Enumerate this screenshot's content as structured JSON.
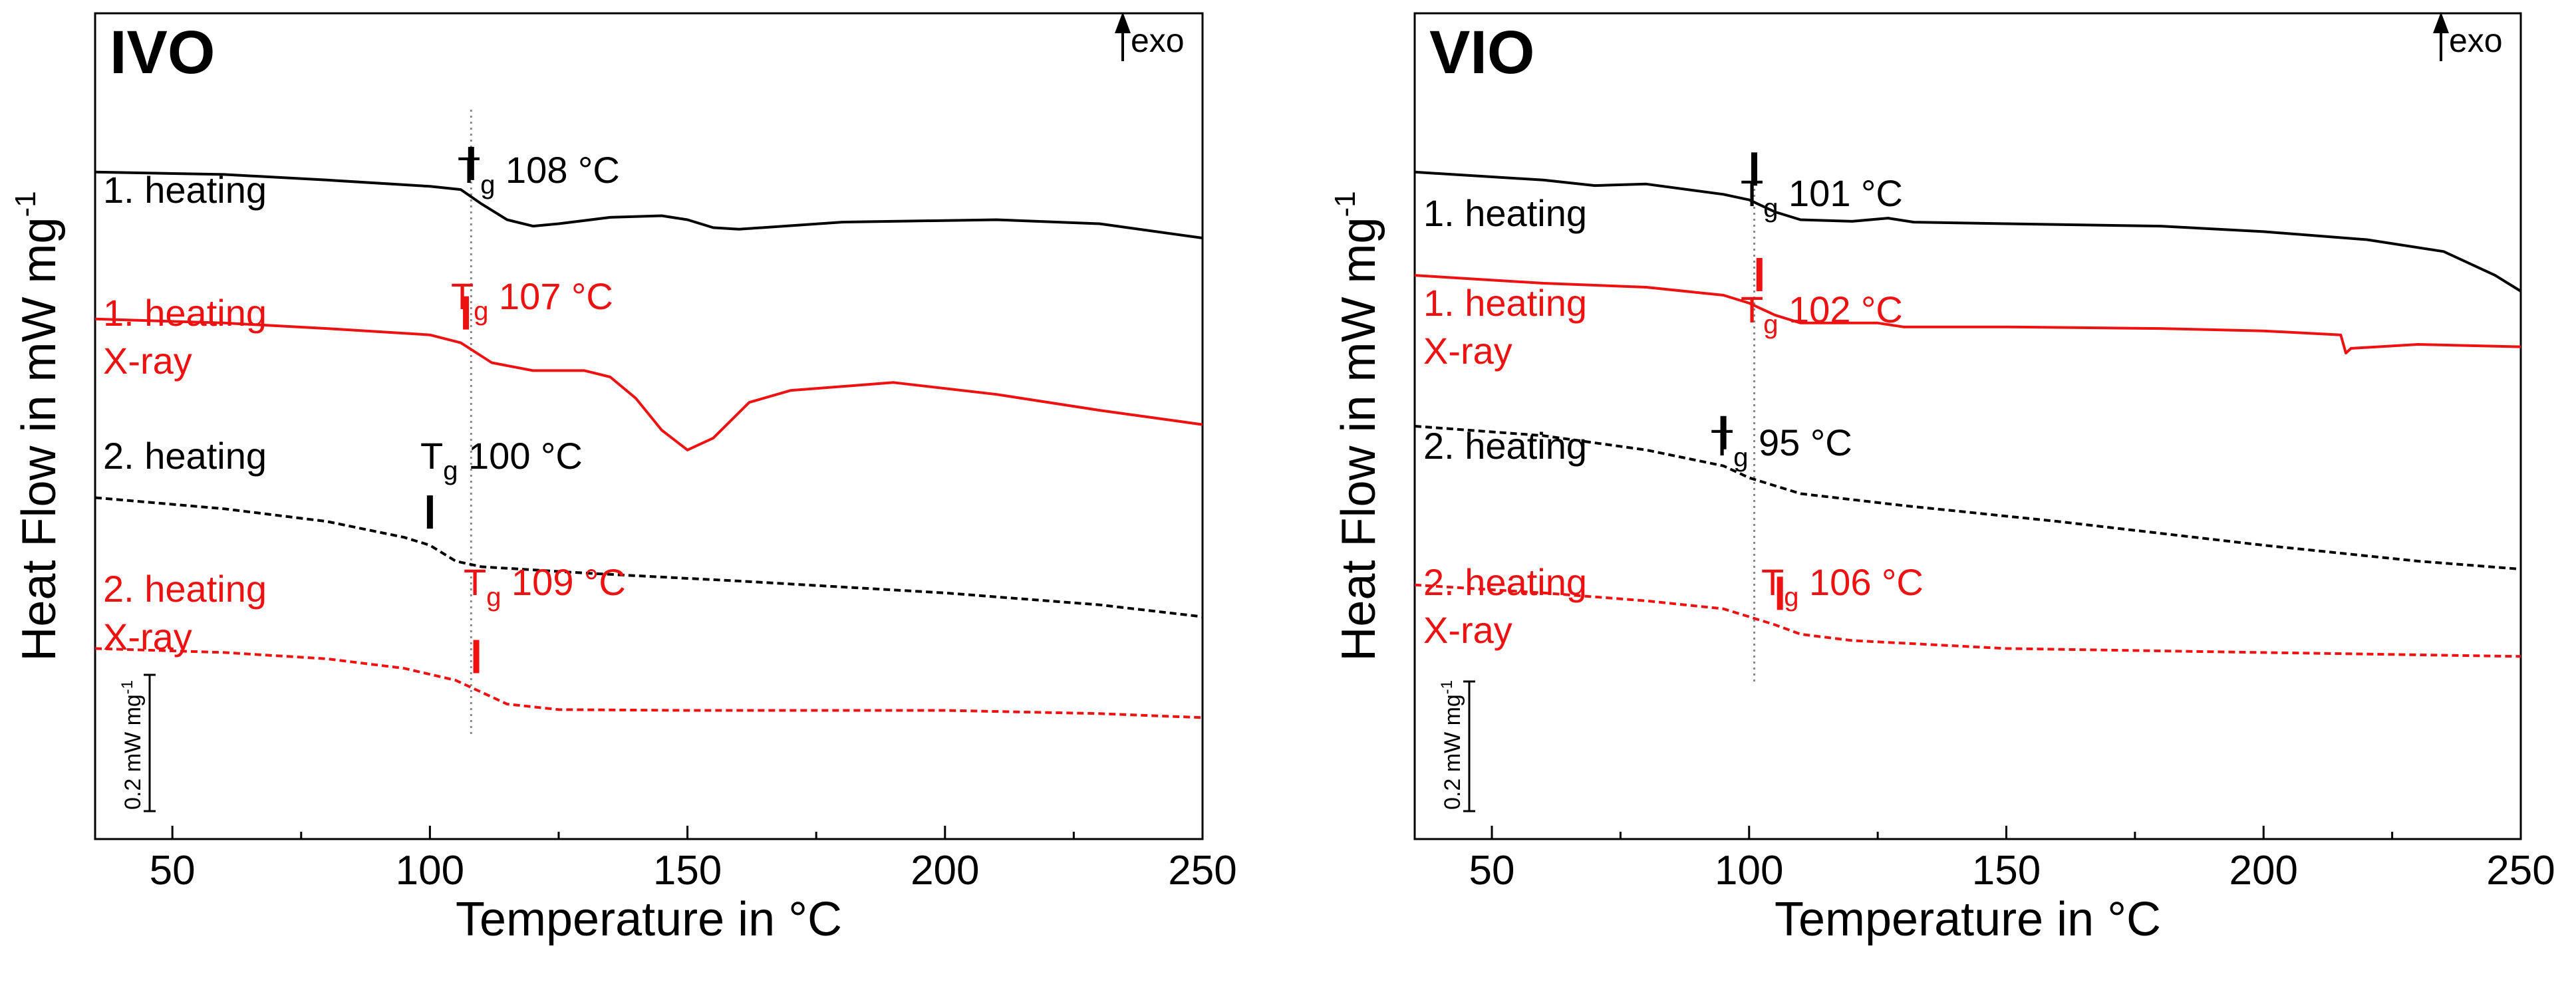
{
  "exo_label": "exo",
  "tg_prefix": "T",
  "tg_sub": "g",
  "scale_bar": {
    "label": "0.2 mW mg",
    "superscript": "-1",
    "value_mW_per_mg": 0.2
  },
  "colors": {
    "black": "#000000",
    "red": "#ee1111",
    "guide": "#888888"
  },
  "chart_data": [
    {
      "type": "line",
      "title": "IVO",
      "xlabel": "Temperature in °C",
      "ylabel": "Heat Flow in mW mg",
      "ylabel_sup": "-1",
      "xlim": [
        35,
        250
      ],
      "xticks": [
        50,
        100,
        150,
        200,
        250
      ],
      "y_units": "relative offset (mW/mg, stacked)",
      "reference_tg": 108,
      "series": [
        {
          "name": "1. heating",
          "label_lines": [
            "1. heating"
          ],
          "color": "black",
          "dash": false,
          "tg": 108,
          "tg_label": "108 °C",
          "x": [
            35,
            60,
            80,
            100,
            106,
            110,
            115,
            120,
            125,
            135,
            145,
            150,
            155,
            160,
            180,
            210,
            230,
            250
          ],
          "y": [
            0.0,
            -0.003,
            -0.01,
            -0.018,
            -0.022,
            -0.04,
            -0.06,
            -0.068,
            -0.065,
            -0.057,
            -0.055,
            -0.06,
            -0.07,
            -0.072,
            -0.063,
            -0.06,
            -0.065,
            -0.083
          ]
        },
        {
          "name": "1. heating X-ray",
          "label_lines": [
            "1. heating",
            "X-ray"
          ],
          "color": "red",
          "dash": false,
          "tg": 107,
          "tg_label": "107 °C",
          "x": [
            35,
            60,
            80,
            100,
            106,
            112,
            120,
            130,
            135,
            140,
            145,
            150,
            155,
            162,
            170,
            190,
            210,
            230,
            250
          ],
          "y": [
            -0.185,
            -0.19,
            -0.197,
            -0.205,
            -0.215,
            -0.24,
            -0.25,
            -0.25,
            -0.258,
            -0.285,
            -0.325,
            -0.35,
            -0.335,
            -0.29,
            -0.275,
            -0.265,
            -0.28,
            -0.3,
            -0.318
          ]
        },
        {
          "name": "2. heating",
          "label_lines": [
            "2. heating"
          ],
          "color": "black",
          "dash": true,
          "tg": 100,
          "tg_label": "100 °C",
          "x": [
            35,
            60,
            80,
            95,
            100,
            105,
            110,
            130,
            160,
            200,
            230,
            250
          ],
          "y": [
            -0.41,
            -0.424,
            -0.44,
            -0.46,
            -0.47,
            -0.49,
            -0.497,
            -0.505,
            -0.515,
            -0.53,
            -0.545,
            -0.56
          ]
        },
        {
          "name": "2. heating X-ray",
          "label_lines": [
            "2. heating",
            "X-ray"
          ],
          "color": "red",
          "dash": true,
          "tg": 109,
          "tg_label": "109 °C",
          "x": [
            35,
            60,
            80,
            95,
            105,
            110,
            115,
            125,
            150,
            200,
            230,
            250
          ],
          "y": [
            -0.6,
            -0.605,
            -0.613,
            -0.625,
            -0.64,
            -0.655,
            -0.67,
            -0.677,
            -0.678,
            -0.678,
            -0.682,
            -0.687
          ]
        }
      ],
      "ylim": [
        -0.84,
        0.2
      ]
    },
    {
      "type": "line",
      "title": "VIO",
      "xlabel": "Temperature in °C",
      "ylabel": "Heat Flow in mW mg",
      "ylabel_sup": "-1",
      "xlim": [
        35,
        250
      ],
      "xticks": [
        50,
        100,
        150,
        200,
        250
      ],
      "y_units": "relative offset (mW/mg, stacked)",
      "reference_tg": 101,
      "series": [
        {
          "name": "1. heating",
          "label_lines": [
            "1. heating"
          ],
          "color": "black",
          "dash": false,
          "tg": 101,
          "tg_label": "101 °C",
          "x": [
            35,
            60,
            70,
            80,
            95,
            100,
            105,
            110,
            120,
            127,
            132,
            150,
            180,
            200,
            220,
            235,
            245,
            250
          ],
          "y": [
            0.0,
            -0.01,
            -0.017,
            -0.015,
            -0.028,
            -0.035,
            -0.05,
            -0.06,
            -0.062,
            -0.058,
            -0.063,
            -0.065,
            -0.068,
            -0.075,
            -0.085,
            -0.1,
            -0.13,
            -0.15
          ]
        },
        {
          "name": "1. heating X-ray",
          "label_lines": [
            "1. heating",
            "X-ray"
          ],
          "color": "red",
          "dash": false,
          "tg": 102,
          "tg_label": "102 °C",
          "x": [
            35,
            60,
            80,
            95,
            100,
            105,
            110,
            125,
            130,
            150,
            180,
            200,
            215,
            216,
            217,
            230,
            250
          ],
          "y": [
            -0.13,
            -0.14,
            -0.145,
            -0.155,
            -0.165,
            -0.18,
            -0.19,
            -0.19,
            -0.195,
            -0.195,
            -0.197,
            -0.2,
            -0.205,
            -0.228,
            -0.222,
            -0.217,
            -0.22
          ]
        },
        {
          "name": "2. heating",
          "label_lines": [
            "2. heating"
          ],
          "color": "black",
          "dash": true,
          "tg": 95,
          "tg_label": "95 °C",
          "x": [
            35,
            60,
            80,
            95,
            100,
            110,
            130,
            160,
            200,
            230,
            250
          ],
          "y": [
            -0.32,
            -0.332,
            -0.35,
            -0.37,
            -0.385,
            -0.405,
            -0.42,
            -0.44,
            -0.47,
            -0.49,
            -0.5
          ]
        },
        {
          "name": "2. heating X-ray",
          "label_lines": [
            "2. heating",
            "X-ray"
          ],
          "color": "red",
          "dash": true,
          "tg": 106,
          "tg_label": "106 °C",
          "x": [
            35,
            60,
            80,
            95,
            105,
            110,
            120,
            150,
            200,
            250
          ],
          "y": [
            -0.52,
            -0.53,
            -0.54,
            -0.55,
            -0.57,
            -0.582,
            -0.59,
            -0.6,
            -0.605,
            -0.61
          ]
        }
      ],
      "ylim": [
        -0.84,
        0.2
      ]
    }
  ]
}
